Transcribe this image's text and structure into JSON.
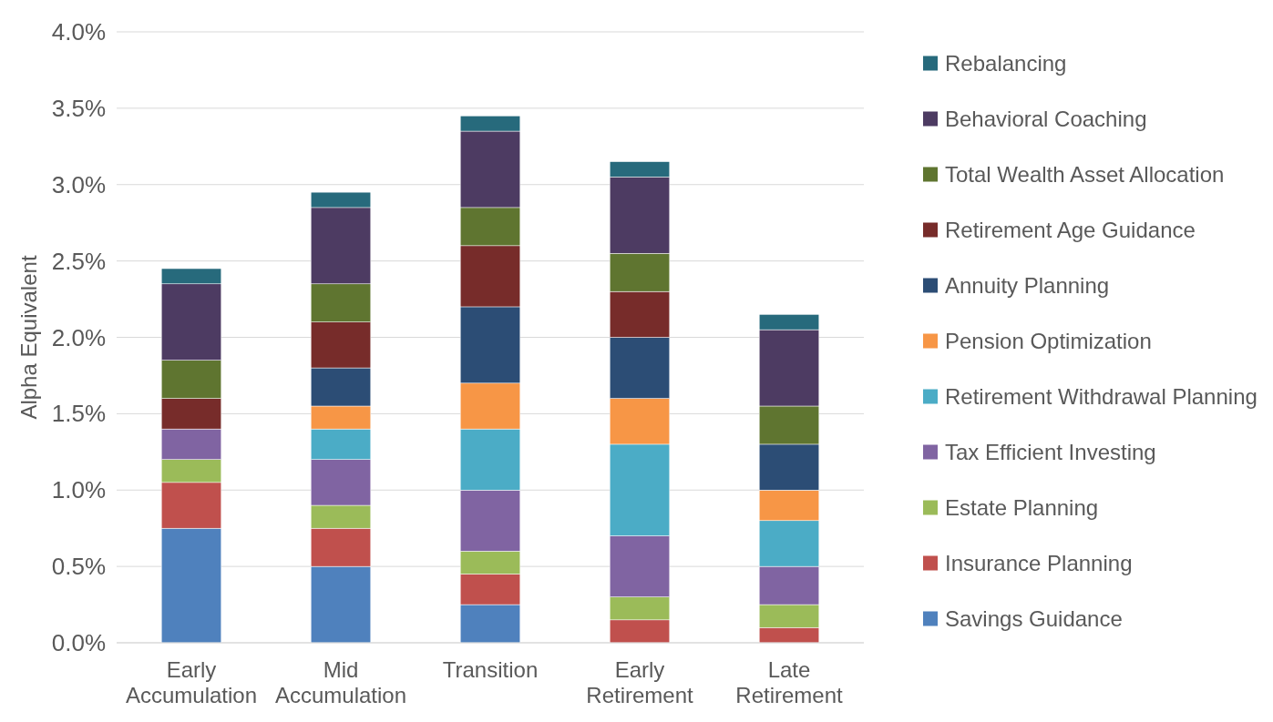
{
  "chart_data": {
    "type": "bar",
    "stacked": true,
    "ylabel": "Alpha Equivalent",
    "categories": [
      "Early Accumulation",
      "Mid Accumulation",
      "Transition",
      "Early Retirement",
      "Late Retirement"
    ],
    "series": [
      {
        "name": "Savings Guidance",
        "color": "#4f81bd",
        "values": [
          0.75,
          0.5,
          0.25,
          0,
          0
        ]
      },
      {
        "name": "Insurance Planning",
        "color": "#c0504d",
        "values": [
          0.3,
          0.25,
          0.2,
          0.15,
          0.1
        ]
      },
      {
        "name": "Estate Planning",
        "color": "#9bbb59",
        "values": [
          0.15,
          0.15,
          0.15,
          0.15,
          0.15
        ]
      },
      {
        "name": "Tax Efficient Investing",
        "color": "#8064a2",
        "values": [
          0.2,
          0.3,
          0.4,
          0.4,
          0.25
        ]
      },
      {
        "name": "Retirement Withdrawal Planning",
        "color": "#4bacc6",
        "values": [
          0,
          0.2,
          0.4,
          0.6,
          0.3
        ]
      },
      {
        "name": "Pension Optimization",
        "color": "#f79646",
        "values": [
          0,
          0.15,
          0.3,
          0.3,
          0.2
        ]
      },
      {
        "name": "Annuity Planning",
        "color": "#2c4d75",
        "values": [
          0,
          0.25,
          0.5,
          0.4,
          0.3
        ]
      },
      {
        "name": "Retirement Age Guidance",
        "color": "#772c2a",
        "values": [
          0.2,
          0.3,
          0.4,
          0.3,
          0
        ]
      },
      {
        "name": "Total Wealth Asset Allocation",
        "color": "#5f7530",
        "values": [
          0.25,
          0.25,
          0.25,
          0.25,
          0.25
        ]
      },
      {
        "name": "Behavioral Coaching",
        "color": "#4d3b62",
        "values": [
          0.5,
          0.5,
          0.5,
          0.5,
          0.5
        ]
      },
      {
        "name": "Rebalancing",
        "color": "#276a7c",
        "values": [
          0.1,
          0.1,
          0.1,
          0.1,
          0.1
        ]
      }
    ],
    "ylim": [
      0,
      4
    ],
    "yticks": [
      {
        "value": 0,
        "label": "0.0%"
      },
      {
        "value": 0.5,
        "label": "0.5%"
      },
      {
        "value": 1,
        "label": "1.0%"
      },
      {
        "value": 1.5,
        "label": "1.5%"
      },
      {
        "value": 2,
        "label": "2.0%"
      },
      {
        "value": 2.5,
        "label": "2.5%"
      },
      {
        "value": 3,
        "label": "3.0%"
      },
      {
        "value": 3.5,
        "label": "3.5%"
      },
      {
        "value": 4,
        "label": "4.0%"
      }
    ],
    "grid": "y",
    "legend": "right"
  }
}
